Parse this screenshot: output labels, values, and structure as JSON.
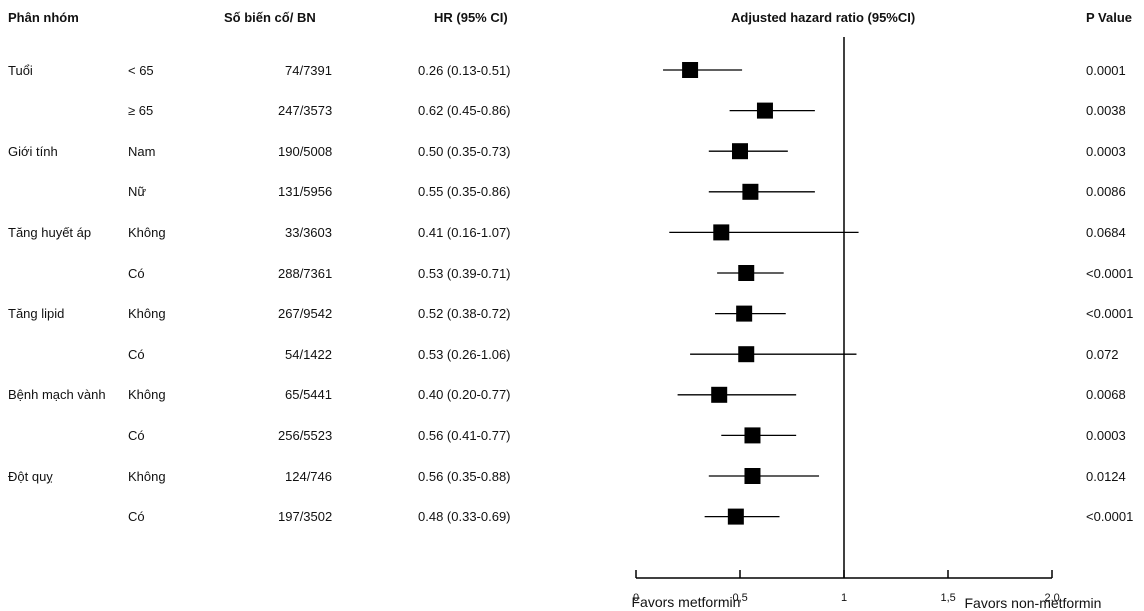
{
  "chart_data": {
    "type": "forest",
    "columns": [
      "Phân nhóm",
      "Số biến cố/ BN",
      "HR (95% CI)",
      "Adjusted hazard ratio (95%CI)",
      "P Value"
    ],
    "groups": [
      "Tuổi",
      null,
      "Giới tính",
      null,
      "Tăng huyết áp",
      null,
      "Tăng lipid",
      null,
      "Bệnh mạch vành",
      null,
      "Đột quỵ",
      null
    ],
    "categories": [
      "< 65",
      "≥ 65",
      "Nam",
      "Nữ",
      "Không",
      "Có",
      "Không",
      "Có",
      "Không",
      "Có",
      "Không",
      "Có"
    ],
    "events": [
      "74/7391",
      "247/3573",
      "190/5008",
      "131/5956",
      "33/3603",
      "288/7361",
      "267/9542",
      "54/1422",
      "65/5441",
      "256/5523",
      "124/746",
      "197/3502"
    ],
    "values": [
      0.26,
      0.62,
      0.5,
      0.55,
      0.41,
      0.53,
      0.52,
      0.53,
      0.4,
      0.56,
      0.56,
      0.48
    ],
    "lower": [
      0.13,
      0.45,
      0.35,
      0.35,
      0.16,
      0.39,
      0.38,
      0.26,
      0.2,
      0.41,
      0.35,
      0.33
    ],
    "upper": [
      0.51,
      0.86,
      0.73,
      0.86,
      1.07,
      0.71,
      0.72,
      1.06,
      0.77,
      0.77,
      0.88,
      0.69
    ],
    "value_labels": [
      "0.26 (0.13-0.51)",
      "0.62 (0.45-0.86)",
      "0.50 (0.35-0.73)",
      "0.55 (0.35-0.86)",
      "0.41 (0.16-1.07)",
      "0.53 (0.39-0.71)",
      "0.52 (0.38-0.72)",
      "0.53 (0.26-1.06)",
      "0.40 (0.20-0.77)",
      "0.56 (0.41-0.77)",
      "0.56 (0.35-0.88)",
      "0.48 (0.33-0.69)"
    ],
    "p_values": [
      "0.0001",
      "0.0038",
      "0.0003",
      "0.0086",
      "0.0684",
      "<0.0001",
      "<0.0001",
      "0.072",
      "0.0068",
      "0.0003",
      "0.0124",
      "<0.0001"
    ],
    "reference": 1,
    "xlim": [
      0,
      2
    ],
    "xticks": [
      0,
      {
        "value": 0.5,
        "label": "0,5"
      },
      1,
      {
        "value": 1.5,
        "label": "1,5"
      },
      {
        "value": 2,
        "label": "2,0"
      }
    ],
    "annotations": [
      "Favors metformin",
      "Favors non-metformin"
    ],
    "color": "#000000"
  }
}
